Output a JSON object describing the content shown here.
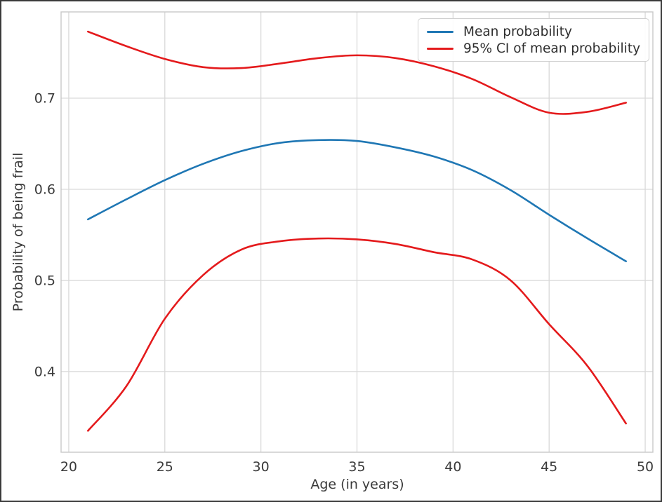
{
  "chart_data": {
    "type": "line",
    "x": [
      21,
      23,
      25,
      27,
      29,
      31,
      33,
      35,
      37,
      39,
      41,
      43,
      45,
      47,
      49
    ],
    "series": [
      {
        "name": "Mean probability",
        "color": "#1f77b4",
        "values": [
          0.567,
          0.589,
          0.61,
          0.628,
          0.642,
          0.651,
          0.654,
          0.653,
          0.646,
          0.636,
          0.621,
          0.599,
          0.572,
          0.546,
          0.521
        ]
      },
      {
        "name": "95% CI upper bound",
        "color": "#e41a1c",
        "values": [
          0.773,
          0.757,
          0.743,
          0.734,
          0.733,
          0.738,
          0.744,
          0.747,
          0.744,
          0.735,
          0.721,
          0.701,
          0.684,
          0.685,
          0.695
        ]
      },
      {
        "name": "95% CI lower bound",
        "color": "#e41a1c",
        "values": [
          0.335,
          0.384,
          0.458,
          0.506,
          0.534,
          0.543,
          0.546,
          0.545,
          0.54,
          0.531,
          0.523,
          0.5,
          0.452,
          0.406,
          0.343
        ]
      }
    ],
    "title": "",
    "xlabel": "Age (in years)",
    "ylabel": "Probability of being frail",
    "xlim": [
      19.6,
      50.4
    ],
    "ylim": [
      0.3115,
      0.7946
    ],
    "xtick_values": [
      20,
      25,
      30,
      35,
      40,
      45,
      50
    ],
    "xtick_labels": [
      "20",
      "25",
      "30",
      "35",
      "40",
      "45",
      "50"
    ],
    "ytick_values": [
      0.4,
      0.5,
      0.6,
      0.7
    ],
    "ytick_labels": [
      "0.4",
      "0.5",
      "0.6",
      "0.7"
    ],
    "grid": true,
    "legend_position": "upper right",
    "legend": [
      {
        "label": "Mean probability",
        "color": "#1f77b4"
      },
      {
        "label": "95% CI of mean probability",
        "color": "#e41a1c"
      }
    ]
  },
  "colors": {
    "background": "#ffffff",
    "frame_border": "#3a3a3a",
    "gridline": "#d9d9d9",
    "plot_spine": "#c9c9c9",
    "text": "#3a3a3a",
    "mean_line": "#1f77b4",
    "ci_line": "#e41a1c"
  }
}
